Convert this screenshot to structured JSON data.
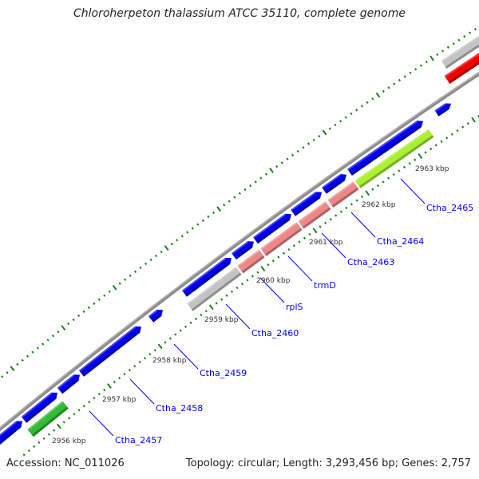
{
  "title": "Chloroherpeton thalassium ATCC 35110, complete genome",
  "footer": {
    "accession": "Accession: NC_011026",
    "summary": "Topology: circular; Length: 3,293,456 bp; Genes: 2,757"
  },
  "colors": {
    "backbone": "#8c8c8c",
    "forward_cds": "#0000ee",
    "trna_green": "#33bb33",
    "rrna_pink": "#ee8888",
    "other_gray": "#c4c4c4",
    "lime": "#aaf033",
    "red": "#ee0000",
    "ticks": "#1a7f1a",
    "label": "#0000ff"
  },
  "kbp_labels": [
    "2956 kbp",
    "2957 kbp",
    "2958 kbp",
    "2959 kbp",
    "2960 kbp",
    "2961 kbp",
    "2962 kbp",
    "2963 kbp"
  ],
  "gene_labels": [
    "Ctha_2457",
    "Ctha_2458",
    "Ctha_2459",
    "Ctha_2460",
    "rplS",
    "trmD",
    "Ctha_2463",
    "Ctha_2464",
    "Ctha_2465"
  ]
}
